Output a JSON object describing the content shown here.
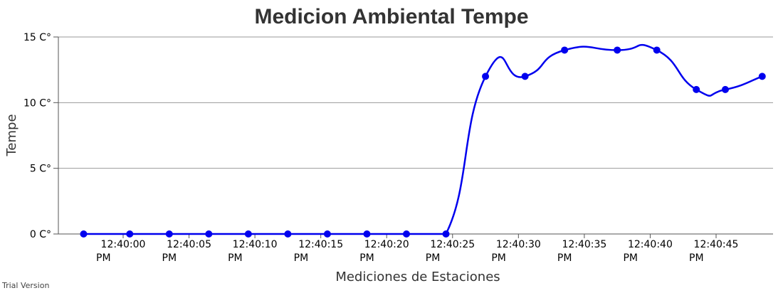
{
  "chart_data": {
    "type": "line",
    "title": "Medicion Ambiental Tempe",
    "xlabel": "Mediciones de Estaciones",
    "ylabel": "Tempe",
    "y_ticks": [
      "0 C°",
      "5 C°",
      "10 C°",
      "15 C°"
    ],
    "x_ticks": [
      {
        "time": "12:40:00",
        "ampm": "PM"
      },
      {
        "time": "12:40:05",
        "ampm": "PM"
      },
      {
        "time": "12:40:10",
        "ampm": "PM"
      },
      {
        "time": "12:40:15",
        "ampm": "PM"
      },
      {
        "time": "12:40:20",
        "ampm": "PM"
      },
      {
        "time": "12:40:25",
        "ampm": "PM"
      },
      {
        "time": "12:40:30",
        "ampm": "PM"
      },
      {
        "time": "12:40:35",
        "ampm": "PM"
      },
      {
        "time": "12:40:40",
        "ampm": "PM"
      },
      {
        "time": "12:40:45",
        "ampm": "PM"
      }
    ],
    "ylim": [
      0,
      15
    ],
    "grid": true,
    "line_color": "#0000ee",
    "series": [
      {
        "x": [
          "12:39:57",
          "12:40:00.5",
          "12:40:03.5",
          "12:40:06.5",
          "12:40:09.5",
          "12:40:12.5",
          "12:40:15.5",
          "12:40:18.5",
          "12:40:21.5",
          "12:40:24.5",
          "12:40:27.5",
          "12:40:30.5",
          "12:40:33.5",
          "12:40:37.5",
          "12:40:40.5",
          "12:40:43.5",
          "12:40:45.7",
          "12:40:48.5"
        ],
        "y": [
          0,
          0,
          0,
          0,
          0,
          0,
          0,
          0,
          0,
          0,
          12,
          12,
          14,
          14,
          14,
          11,
          11,
          12
        ]
      }
    ]
  },
  "watermark": "Trial Version"
}
